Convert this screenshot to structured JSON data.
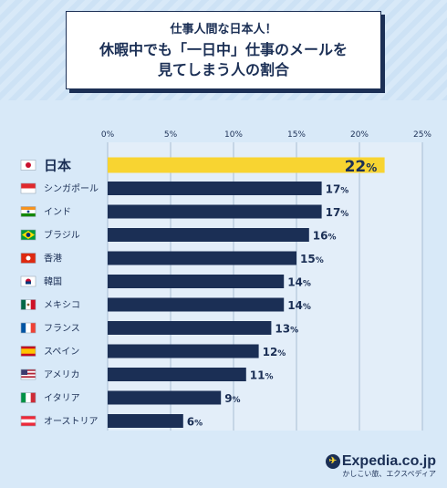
{
  "title": {
    "line1": "仕事人間な日本人！",
    "line2": "休暇中でも「一日中」仕事のメールを",
    "line3": "見てしまう人の割合"
  },
  "chart_data": {
    "type": "bar",
    "orientation": "horizontal",
    "xlim": [
      0,
      25
    ],
    "x_ticks": [
      "0%",
      "5%",
      "10%",
      "15%",
      "20%",
      "25%"
    ],
    "x_tick_values": [
      0,
      5,
      10,
      15,
      20,
      25
    ],
    "grid": true,
    "categories": [
      "日本",
      "シンガポール",
      "インド",
      "ブラジル",
      "香港",
      "韓国",
      "メキシコ",
      "フランス",
      "スペイン",
      "アメリカ",
      "イタリア",
      "オーストリア"
    ],
    "values": [
      22,
      17,
      17,
      16,
      15,
      14,
      14,
      13,
      12,
      11,
      9,
      6
    ],
    "value_labels": [
      "22",
      "17",
      "17",
      "16",
      "15",
      "14",
      "14",
      "13",
      "12",
      "11",
      "9",
      "6"
    ],
    "unit": "%",
    "flags": [
      "japan-flag-icon",
      "singapore-flag-icon",
      "india-flag-icon",
      "brazil-flag-icon",
      "hongkong-flag-icon",
      "korea-flag-icon",
      "mexico-flag-icon",
      "france-flag-icon",
      "spain-flag-icon",
      "usa-flag-icon",
      "italy-flag-icon",
      "austria-flag-icon"
    ],
    "colors": {
      "highlight": "#f8d431",
      "bar": "#1b2f55",
      "grid": "#a9bdd3"
    }
  },
  "logo": {
    "main": "Expedia.co.jp",
    "sub": "かしこい旅、エクスペディア"
  }
}
